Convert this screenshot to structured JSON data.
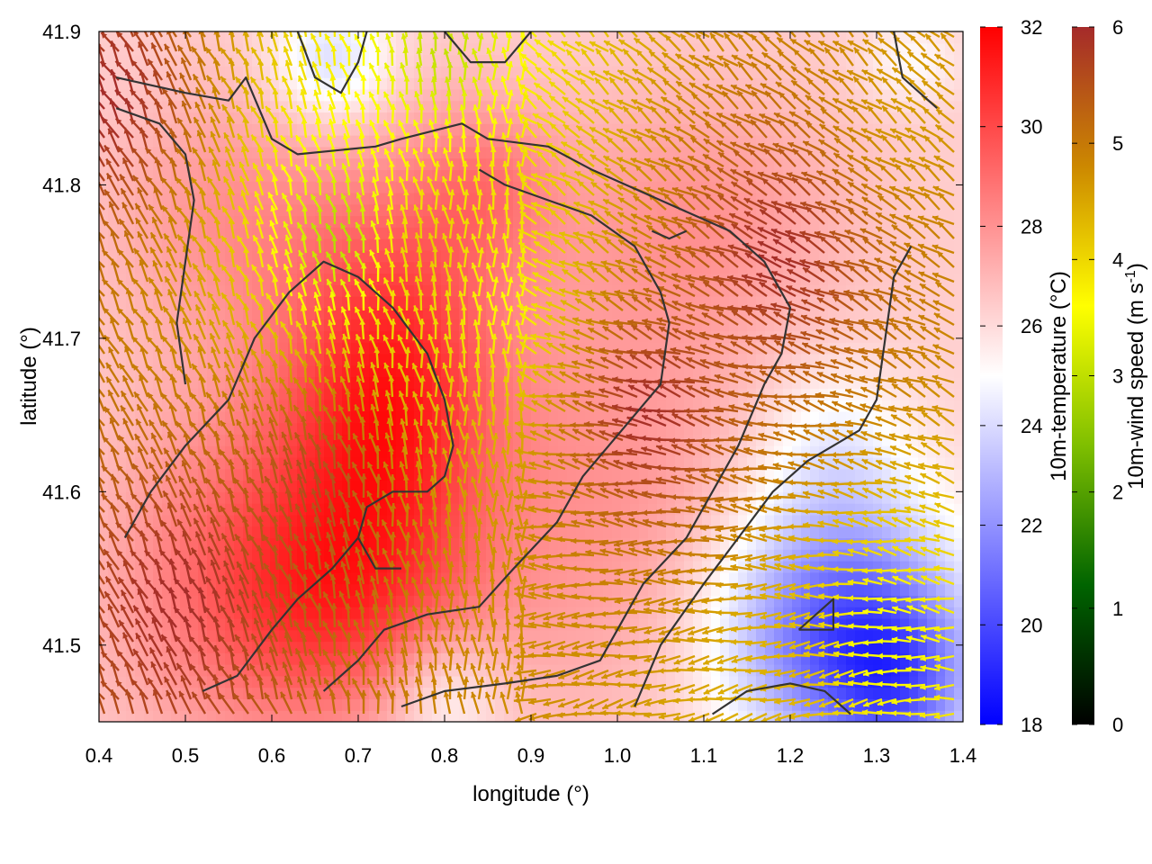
{
  "chart_data": {
    "type": "heatmap",
    "xlabel": "longitude (°)",
    "ylabel": "latitude (°)",
    "xlim": [
      0.4,
      1.4
    ],
    "ylim": [
      41.45,
      41.9
    ],
    "x_ticks": [
      0.4,
      0.5,
      0.6,
      0.7,
      0.8,
      0.9,
      1.0,
      1.1,
      1.2,
      1.3,
      1.4
    ],
    "x_tick_labels": [
      "0.4",
      "0.5",
      "0.6",
      "0.7",
      "0.8",
      "0.9",
      "1.0",
      "1.1",
      "1.2",
      "1.3",
      "1.4"
    ],
    "y_ticks": [
      41.5,
      41.6,
      41.7,
      41.8,
      41.9
    ],
    "y_tick_labels": [
      "41.5",
      "41.6",
      "41.7",
      "41.8",
      "41.9"
    ],
    "temperature_colorbar": {
      "label": "10m-temperature (°C)",
      "range": [
        18,
        32
      ],
      "ticks": [
        18,
        20,
        22,
        24,
        26,
        28,
        30,
        32
      ],
      "tick_labels": [
        "18",
        "20",
        "22",
        "24",
        "26",
        "28",
        "30",
        "32"
      ],
      "colormap": [
        "#0000ff",
        "#ffffff",
        "#ff0000"
      ]
    },
    "wind_colorbar": {
      "label": "10m-wind speed (m s",
      "label_sup": "-1",
      "label_end": ")",
      "range": [
        0,
        6
      ],
      "ticks": [
        0,
        1,
        2,
        3,
        4,
        5,
        6
      ],
      "tick_labels": [
        "0",
        "1",
        "2",
        "3",
        "4",
        "5",
        "6"
      ],
      "colormap": [
        "#000000",
        "#006400",
        "#7fbf00",
        "#ffff00",
        "#cc8800",
        "#a52a2a"
      ]
    },
    "temperature_field": {
      "background": 26.3,
      "bumps": [
        {
          "lon": 0.74,
          "lat": 41.67,
          "slon": 0.09,
          "slat": 0.09,
          "amp": 4.6
        },
        {
          "lon": 0.6,
          "lat": 41.55,
          "slon": 0.12,
          "slat": 0.08,
          "amp": 3.2
        },
        {
          "lon": 0.55,
          "lat": 41.78,
          "slon": 0.1,
          "slat": 0.06,
          "amp": 1.6
        },
        {
          "lon": 0.85,
          "lat": 41.8,
          "slon": 0.06,
          "slat": 0.04,
          "amp": 1.8
        },
        {
          "lon": 1.0,
          "lat": 41.6,
          "slon": 0.12,
          "slat": 0.1,
          "amp": 1.6
        },
        {
          "lon": 1.1,
          "lat": 41.78,
          "slon": 0.12,
          "slat": 0.06,
          "amp": 1.5
        },
        {
          "lon": 0.7,
          "lat": 41.52,
          "slon": 0.12,
          "slat": 0.05,
          "amp": 1.5
        },
        {
          "lon": 0.8,
          "lat": 41.47,
          "slon": 0.05,
          "slat": 0.03,
          "amp": -2.0
        },
        {
          "lon": 1.26,
          "lat": 41.51,
          "slon": 0.1,
          "slat": 0.06,
          "amp": -6.0
        },
        {
          "lon": 1.33,
          "lat": 41.47,
          "slon": 0.06,
          "slat": 0.04,
          "amp": -3.0
        },
        {
          "lon": 1.25,
          "lat": 41.63,
          "slon": 0.06,
          "slat": 0.04,
          "amp": -1.5
        },
        {
          "lon": 0.67,
          "lat": 41.88,
          "slon": 0.05,
          "slat": 0.03,
          "amp": -2.5
        },
        {
          "lon": 1.34,
          "lat": 41.88,
          "slon": 0.04,
          "slat": 0.02,
          "amp": -1.2
        }
      ]
    },
    "wind_field": {
      "vortex_center": {
        "lon": 1.32,
        "lat": 41.62
      },
      "direction_note": "flow converges toward inland trough; easterly/southeasterly in east, northerly/northwesterly in west",
      "regions": [
        {
          "lon": 0.42,
          "lat": 41.85,
          "speed": 6.0
        },
        {
          "lon": 0.5,
          "lat": 41.52,
          "speed": 6.0
        },
        {
          "lon": 0.65,
          "lat": 41.6,
          "speed": 5.6
        },
        {
          "lon": 0.78,
          "lat": 41.75,
          "speed": 4.2
        },
        {
          "lon": 0.68,
          "lat": 41.76,
          "speed": 2.8
        },
        {
          "lon": 0.87,
          "lat": 41.72,
          "speed": 3.6
        },
        {
          "lon": 1.05,
          "lat": 41.65,
          "speed": 6.0
        },
        {
          "lon": 1.2,
          "lat": 41.75,
          "speed": 6.0
        },
        {
          "lon": 1.32,
          "lat": 41.5,
          "speed": 3.5
        },
        {
          "lon": 1.2,
          "lat": 41.47,
          "speed": 4.4
        },
        {
          "lon": 0.8,
          "lat": 41.88,
          "speed": 3.0
        },
        {
          "lon": 1.35,
          "lat": 41.85,
          "speed": 4.6
        }
      ]
    },
    "coastline_and_rivers": [
      [
        [
          0.42,
          41.87
        ],
        [
          0.5,
          41.86
        ],
        [
          0.55,
          41.855
        ],
        [
          0.57,
          41.87
        ],
        [
          0.6,
          41.83
        ],
        [
          0.63,
          41.82
        ],
        [
          0.72,
          41.825
        ],
        [
          0.75,
          41.83
        ],
        [
          0.82,
          41.84
        ],
        [
          0.85,
          41.83
        ],
        [
          0.92,
          41.825
        ],
        [
          0.97,
          41.81
        ],
        [
          1.05,
          41.79
        ],
        [
          1.13,
          41.77
        ],
        [
          1.17,
          41.75
        ],
        [
          1.2,
          41.72
        ],
        [
          1.19,
          41.69
        ],
        [
          1.17,
          41.67
        ],
        [
          1.14,
          41.63
        ],
        [
          1.11,
          41.6
        ],
        [
          1.08,
          41.57
        ],
        [
          1.03,
          41.54
        ],
        [
          1.0,
          41.51
        ],
        [
          0.98,
          41.49
        ],
        [
          0.93,
          41.48
        ],
        [
          0.87,
          41.475
        ],
        [
          0.8,
          41.47
        ],
        [
          0.75,
          41.46
        ]
      ],
      [
        [
          0.42,
          41.85
        ],
        [
          0.47,
          41.84
        ],
        [
          0.5,
          41.82
        ],
        [
          0.51,
          41.79
        ],
        [
          0.5,
          41.75
        ],
        [
          0.49,
          41.71
        ],
        [
          0.5,
          41.67
        ]
      ],
      [
        [
          0.43,
          41.57
        ],
        [
          0.46,
          41.6
        ],
        [
          0.5,
          41.63
        ],
        [
          0.55,
          41.66
        ],
        [
          0.58,
          41.7
        ],
        [
          0.62,
          41.73
        ],
        [
          0.66,
          41.75
        ],
        [
          0.7,
          41.74
        ],
        [
          0.74,
          41.72
        ],
        [
          0.78,
          41.69
        ],
        [
          0.8,
          41.66
        ],
        [
          0.81,
          41.63
        ],
        [
          0.8,
          41.61
        ],
        [
          0.78,
          41.6
        ],
        [
          0.74,
          41.6
        ],
        [
          0.71,
          41.59
        ],
        [
          0.7,
          41.57
        ],
        [
          0.72,
          41.55
        ],
        [
          0.75,
          41.55
        ]
      ],
      [
        [
          0.52,
          41.47
        ],
        [
          0.56,
          41.48
        ],
        [
          0.6,
          41.51
        ],
        [
          0.63,
          41.53
        ],
        [
          0.67,
          41.55
        ],
        [
          0.7,
          41.57
        ]
      ],
      [
        [
          0.66,
          41.47
        ],
        [
          0.7,
          41.49
        ],
        [
          0.73,
          41.51
        ],
        [
          0.78,
          41.52
        ],
        [
          0.84,
          41.525
        ],
        [
          0.88,
          41.55
        ],
        [
          0.93,
          41.58
        ],
        [
          0.96,
          41.61
        ],
        [
          0.99,
          41.63
        ],
        [
          1.02,
          41.65
        ],
        [
          1.05,
          41.67
        ],
        [
          1.06,
          41.71
        ],
        [
          1.05,
          41.73
        ],
        [
          1.02,
          41.76
        ],
        [
          0.97,
          41.78
        ],
        [
          0.92,
          41.79
        ],
        [
          0.87,
          41.8
        ],
        [
          0.84,
          41.81
        ]
      ],
      [
        [
          1.02,
          41.46
        ],
        [
          1.05,
          41.5
        ],
        [
          1.1,
          41.54
        ],
        [
          1.14,
          41.57
        ],
        [
          1.18,
          41.6
        ],
        [
          1.22,
          41.62
        ],
        [
          1.25,
          41.63
        ],
        [
          1.28,
          41.64
        ],
        [
          1.3,
          41.66
        ],
        [
          1.31,
          41.7
        ],
        [
          1.32,
          41.74
        ],
        [
          1.34,
          41.76
        ]
      ],
      [
        [
          1.11,
          41.455
        ],
        [
          1.15,
          41.47
        ],
        [
          1.2,
          41.475
        ],
        [
          1.24,
          41.47
        ],
        [
          1.27,
          41.455
        ]
      ],
      [
        [
          1.21,
          41.51
        ],
        [
          1.25,
          41.53
        ],
        [
          1.25,
          41.51
        ],
        [
          1.21,
          41.51
        ]
      ],
      [
        [
          0.63,
          41.9
        ],
        [
          0.65,
          41.87
        ],
        [
          0.68,
          41.86
        ],
        [
          0.7,
          41.88
        ],
        [
          0.71,
          41.9
        ]
      ],
      [
        [
          0.8,
          41.9
        ],
        [
          0.83,
          41.88
        ],
        [
          0.87,
          41.88
        ],
        [
          0.9,
          41.9
        ]
      ],
      [
        [
          1.32,
          41.9
        ],
        [
          1.33,
          41.87
        ],
        [
          1.37,
          41.85
        ]
      ],
      [
        [
          1.04,
          41.77
        ],
        [
          1.06,
          41.765
        ],
        [
          1.08,
          41.77
        ]
      ]
    ]
  }
}
